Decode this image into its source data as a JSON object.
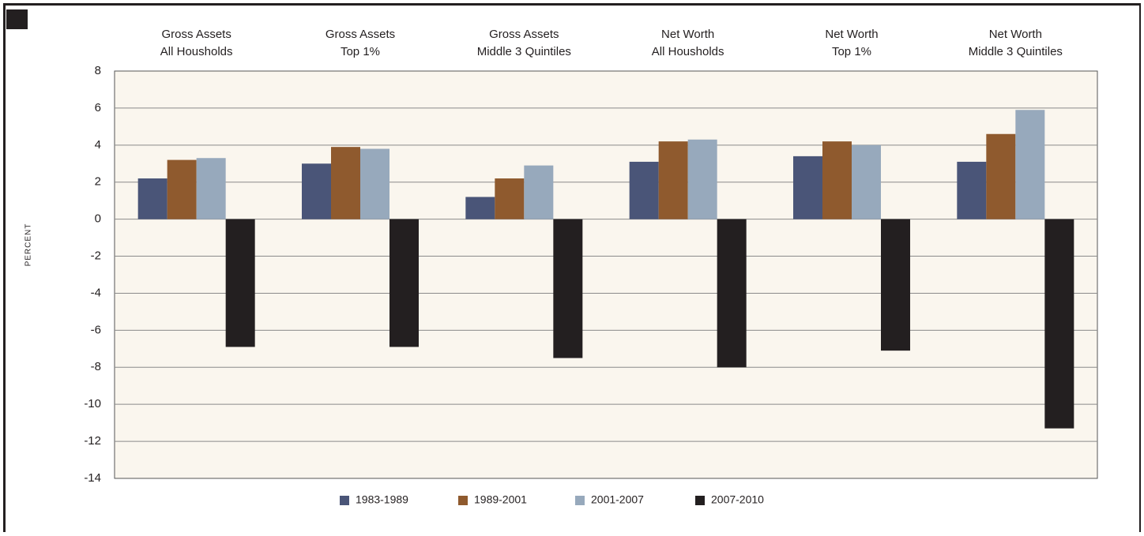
{
  "chart_data": {
    "type": "bar",
    "categories": [
      [
        "Gross Assets",
        "All Housholds"
      ],
      [
        "Gross Assets",
        "Top 1%"
      ],
      [
        "Gross Assets",
        "Middle 3 Quintiles"
      ],
      [
        "Net Worth",
        "All Housholds"
      ],
      [
        "Net Worth",
        "Top 1%"
      ],
      [
        "Net Worth",
        "Middle 3 Quintiles"
      ]
    ],
    "y_label": "PERCENT",
    "series": [
      {
        "name": "1983-1989",
        "color": "#4a5578",
        "values": [
          2.2,
          3.0,
          1.2,
          3.1,
          3.4,
          3.1
        ]
      },
      {
        "name": "1989-2001",
        "color": "#8f5a2e",
        "values": [
          3.2,
          3.9,
          2.2,
          4.2,
          4.2,
          4.6
        ]
      },
      {
        "name": "2001-2007",
        "color": "#97a9bc",
        "values": [
          3.3,
          3.8,
          2.9,
          4.3,
          4.0,
          5.9
        ]
      },
      {
        "name": "2007-2010",
        "color": "#231f20",
        "values": [
          -6.9,
          -6.9,
          -7.5,
          -8.0,
          -7.1,
          -11.3
        ]
      }
    ],
    "ylim": [
      -14,
      8
    ],
    "yticks": [
      -14,
      -12,
      -10,
      -8,
      -6,
      -4,
      -2,
      0,
      2,
      4,
      6,
      8
    ],
    "grid": true
  }
}
